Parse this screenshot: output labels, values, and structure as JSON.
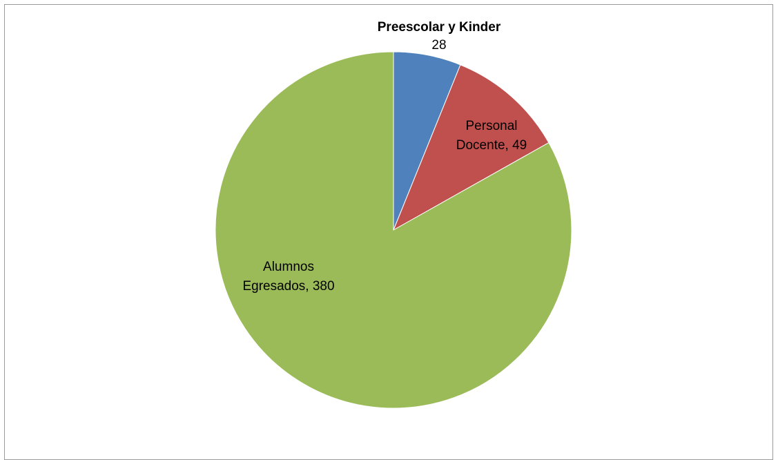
{
  "chart_data": {
    "type": "pie",
    "start_angle_deg": 0,
    "direction": "clockwise",
    "slices": [
      {
        "label": "Preescolar y Kinder",
        "value": 28,
        "value_text": "28",
        "color": "#4F81BD",
        "label_lines": [
          "Preescolar y Kinder",
          "28"
        ],
        "label_bold_first_line": true
      },
      {
        "label": "Personal Docente",
        "value": 49,
        "value_text": "49",
        "color": "#C0504D",
        "label_lines": [
          "Personal",
          "Docente, 49"
        ],
        "label_bold_first_line": false
      },
      {
        "label": "Alumnos Egresados",
        "value": 380,
        "value_text": "380",
        "color": "#9BBB59",
        "label_lines": [
          "Alumnos",
          "Egresados, 380"
        ],
        "label_bold_first_line": false
      }
    ]
  }
}
